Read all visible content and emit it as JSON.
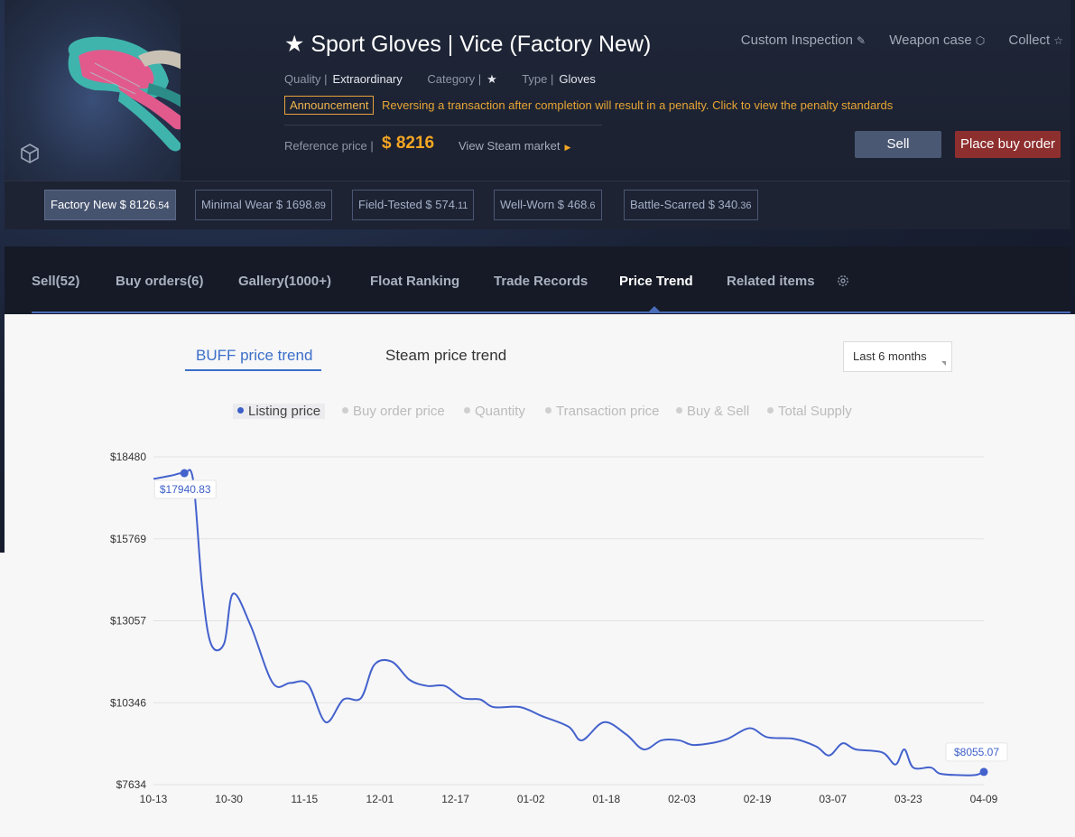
{
  "item": {
    "title": "★ Sport Gloves | Vice (Factory New)",
    "quality_label": "Quality |",
    "quality": "Extraordinary",
    "category_label": "Category |",
    "category": "★",
    "type_label": "Type |",
    "type": "Gloves",
    "announcement_badge": "Announcement",
    "announcement_text": "Reversing a transaction after completion will result in a penalty. Click to view the penalty standards",
    "reference_label": "Reference price |",
    "reference_price": "$ 8216",
    "steam_link": "View Steam market"
  },
  "actions": {
    "inspect": "Custom Inspection",
    "case": "Weapon case",
    "collect": "Collect",
    "sell": "Sell",
    "buy_order": "Place buy order"
  },
  "wears": [
    {
      "label": "Factory New $ 8126",
      "cents": ".54",
      "active": true
    },
    {
      "label": "Minimal Wear $ 1698",
      "cents": ".89",
      "active": false
    },
    {
      "label": "Field-Tested $ 574",
      "cents": ".11",
      "active": false
    },
    {
      "label": "Well-Worn $ 468",
      "cents": ".6",
      "active": false
    },
    {
      "label": "Battle-Scarred $ 340",
      "cents": ".36",
      "active": false
    }
  ],
  "tabs": [
    "Sell(52)",
    "Buy orders(6)",
    "Gallery(1000+)",
    "Float Ranking",
    "Trade Records",
    "Price Trend",
    "Related items"
  ],
  "active_tab": "Price Trend",
  "trend": {
    "buff_tab": "BUFF price trend",
    "steam_tab": "Steam price trend",
    "range": "Last 6 months",
    "legend": [
      "Listing price",
      "Buy order price",
      "Quantity",
      "Transaction price",
      "Buy & Sell",
      "Total Supply"
    ],
    "legend_active": "Listing price"
  },
  "chart_data": {
    "type": "line",
    "series": [
      {
        "name": "Listing price",
        "color": "#4462cc"
      }
    ],
    "y_ticks": [
      "$18480",
      "$15769",
      "$13057",
      "$10346",
      "$7634"
    ],
    "ylim": [
      7634,
      18480
    ],
    "x_ticks": [
      "10-13",
      "10-30",
      "11-15",
      "12-01",
      "12-17",
      "01-02",
      "01-18",
      "02-03",
      "02-19",
      "03-07",
      "03-23",
      "04-09"
    ],
    "x_index_range": [
      0,
      178
    ],
    "points": [
      [
        0,
        17750
      ],
      [
        4,
        17860
      ],
      [
        7,
        17941
      ],
      [
        9,
        17700
      ],
      [
        11,
        14200
      ],
      [
        13,
        12300
      ],
      [
        16,
        12300
      ],
      [
        18,
        13950
      ],
      [
        22,
        12900
      ],
      [
        27,
        11000
      ],
      [
        31,
        11000
      ],
      [
        35,
        10950
      ],
      [
        39,
        9700
      ],
      [
        43,
        10450
      ],
      [
        47,
        10500
      ],
      [
        50,
        11600
      ],
      [
        54,
        11700
      ],
      [
        58,
        11100
      ],
      [
        62,
        10900
      ],
      [
        66,
        10900
      ],
      [
        70,
        10500
      ],
      [
        74,
        10450
      ],
      [
        77,
        10200
      ],
      [
        83,
        10200
      ],
      [
        88,
        9900
      ],
      [
        94,
        9550
      ],
      [
        97,
        9100
      ],
      [
        102,
        9700
      ],
      [
        107,
        9300
      ],
      [
        111,
        8800
      ],
      [
        115,
        9100
      ],
      [
        119,
        9100
      ],
      [
        122,
        8950
      ],
      [
        126,
        9000
      ],
      [
        130,
        9150
      ],
      [
        135,
        9500
      ],
      [
        139,
        9200
      ],
      [
        145,
        9150
      ],
      [
        150,
        8900
      ],
      [
        153,
        8600
      ],
      [
        156,
        9000
      ],
      [
        159,
        8800
      ],
      [
        165,
        8700
      ],
      [
        168,
        8300
      ],
      [
        170,
        8800
      ],
      [
        172,
        8200
      ],
      [
        176,
        8200
      ],
      [
        178,
        8000
      ],
      [
        182,
        7950
      ],
      [
        186,
        7950
      ],
      [
        188,
        8055
      ]
    ],
    "annotations": [
      {
        "label": "$17940.83",
        "x": 7,
        "y": 17941
      },
      {
        "label": "$8055.07",
        "x": 188,
        "y": 8055
      }
    ]
  }
}
